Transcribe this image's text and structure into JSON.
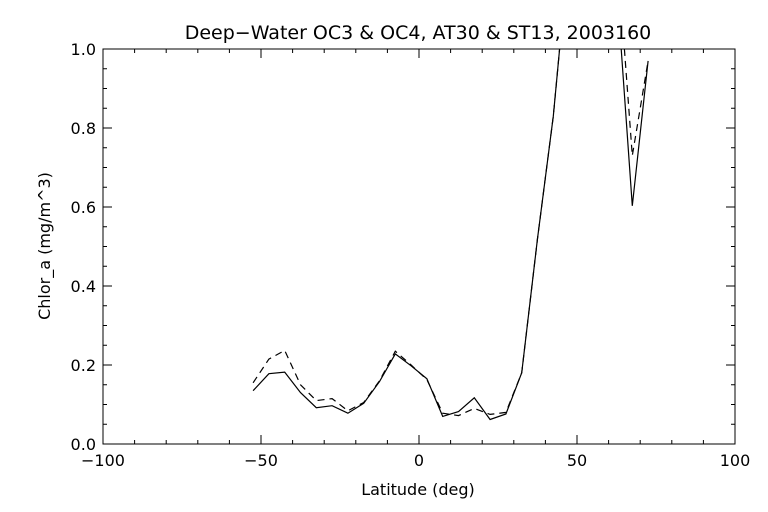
{
  "chart_data": {
    "type": "line",
    "title": "Deep−Water OC3 & OC4, AT30 & ST13, 2003160",
    "xlabel": "Latitude (deg)",
    "ylabel": "Chlor_a (mg/m^3)",
    "xlim": [
      -100,
      100
    ],
    "ylim": [
      0,
      1.0
    ],
    "x_ticks": [
      -100,
      -50,
      0,
      50,
      100
    ],
    "x_tick_labels": [
      "−100",
      "−50",
      "0",
      "50",
      "100"
    ],
    "y_ticks": [
      0.0,
      0.2,
      0.4,
      0.6,
      0.8,
      1.0
    ],
    "y_tick_labels": [
      "0.0",
      "0.2",
      "0.4",
      "0.6",
      "0.8",
      "1.0"
    ],
    "grid": false,
    "legend": "none",
    "series": [
      {
        "style": "solid",
        "segments": [
          [
            [
              -52.5,
              0.135
            ],
            [
              -47.5,
              0.178
            ],
            [
              -42.5,
              0.182
            ],
            [
              -37.5,
              0.13
            ],
            [
              -32.5,
              0.092
            ],
            [
              -27.5,
              0.097
            ],
            [
              -22.5,
              0.078
            ],
            [
              -17.5,
              0.103
            ],
            [
              -12.5,
              0.158
            ],
            [
              -7.5,
              0.228
            ],
            [
              -2.5,
              0.198
            ],
            [
              2.5,
              0.165
            ],
            [
              7.5,
              0.07
            ],
            [
              12.5,
              0.082
            ],
            [
              17.5,
              0.117
            ],
            [
              22.5,
              0.062
            ],
            [
              27.5,
              0.076
            ],
            [
              32.5,
              0.18
            ],
            [
              37.5,
              0.52
            ],
            [
              42.5,
              0.83
            ],
            [
              44.5,
              1.0
            ]
          ],
          [
            [
              64.0,
              1.0
            ],
            [
              67.5,
              0.603
            ],
            [
              72.5,
              0.97
            ]
          ]
        ]
      },
      {
        "style": "dashed",
        "segments": [
          [
            [
              -52.5,
              0.155
            ],
            [
              -47.5,
              0.215
            ],
            [
              -42.5,
              0.237
            ],
            [
              -37.5,
              0.15
            ],
            [
              -32.5,
              0.11
            ],
            [
              -27.5,
              0.115
            ],
            [
              -22.5,
              0.084
            ],
            [
              -17.5,
              0.105
            ],
            [
              -12.5,
              0.16
            ],
            [
              -7.5,
              0.235
            ],
            [
              -2.5,
              0.2
            ],
            [
              2.5,
              0.163
            ],
            [
              7.5,
              0.078
            ],
            [
              12.5,
              0.072
            ],
            [
              17.5,
              0.09
            ],
            [
              22.5,
              0.075
            ],
            [
              27.5,
              0.08
            ],
            [
              32.5,
              0.18
            ],
            [
              37.5,
              0.52
            ],
            [
              42.5,
              0.83
            ],
            [
              44.5,
              1.0
            ]
          ],
          [
            [
              65.0,
              1.0
            ],
            [
              67.5,
              0.73
            ],
            [
              72.5,
              0.97
            ]
          ]
        ]
      }
    ]
  }
}
